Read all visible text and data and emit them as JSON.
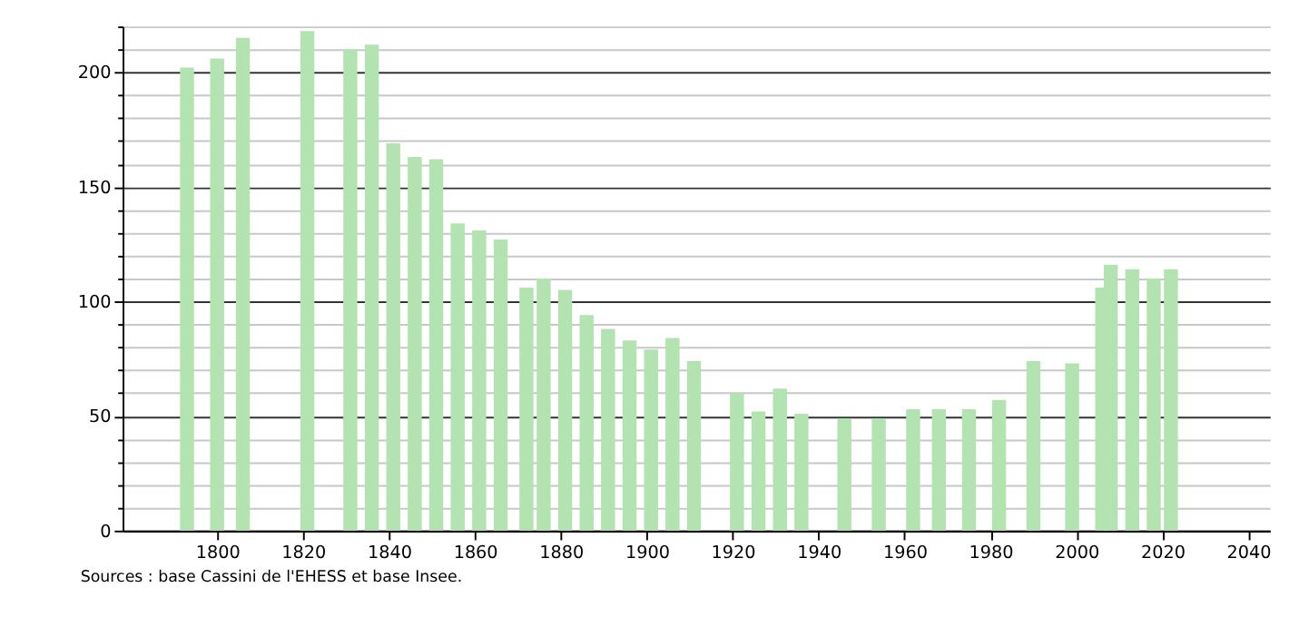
{
  "chart_data": {
    "type": "bar",
    "x": [
      1793,
      1800,
      1806,
      1821,
      1831,
      1836,
      1841,
      1846,
      1851,
      1856,
      1861,
      1866,
      1872,
      1876,
      1881,
      1886,
      1891,
      1896,
      1901,
      1906,
      1911,
      1921,
      1926,
      1931,
      1936,
      1946,
      1954,
      1962,
      1968,
      1975,
      1982,
      1990,
      1999,
      2006,
      2008,
      2013,
      2018,
      2022
    ],
    "values": [
      202,
      206,
      215,
      218,
      210,
      212,
      169,
      163,
      162,
      134,
      131,
      127,
      106,
      110,
      105,
      94,
      88,
      83,
      79,
      84,
      74,
      60,
      52,
      62,
      51,
      49,
      49,
      53,
      53,
      53,
      57,
      74,
      73,
      106,
      116,
      114,
      110,
      114
    ],
    "color": "#b3e3b0",
    "xlim": [
      1778,
      2045
    ],
    "xticks": [
      1800,
      1820,
      1840,
      1860,
      1880,
      1900,
      1920,
      1940,
      1960,
      1980,
      2000,
      2020,
      2040
    ],
    "ylim": [
      0,
      220
    ],
    "yticks": [
      0,
      {
        "value": 10,
        "label": null
      },
      {
        "value": 20,
        "label": null
      },
      {
        "value": 30,
        "label": null
      },
      {
        "value": 40,
        "label": null
      },
      50,
      {
        "value": 60,
        "label": null
      },
      {
        "value": 70,
        "label": null
      },
      {
        "value": 80,
        "label": null
      },
      {
        "value": 90,
        "label": null
      },
      100,
      {
        "value": 110,
        "label": null
      },
      {
        "value": 120,
        "label": null
      },
      {
        "value": 130,
        "label": null
      },
      {
        "value": 140,
        "label": null
      },
      150,
      {
        "value": 160,
        "label": null
      },
      {
        "value": 170,
        "label": null
      },
      {
        "value": 180,
        "label": null
      },
      {
        "value": 190,
        "label": null
      },
      200,
      {
        "value": 210,
        "label": null
      },
      {
        "value": 220,
        "label": null
      }
    ],
    "grid": "y",
    "annotations": [
      "Sources : base Cassini de l'EHESS et base Insee."
    ]
  }
}
